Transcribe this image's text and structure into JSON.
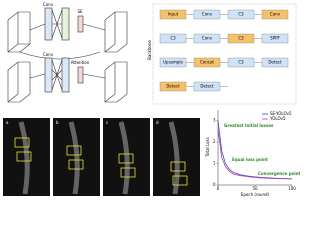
{
  "top_diagram": {
    "labels": [
      "Conv",
      "SE",
      "Conv",
      "Attention"
    ]
  },
  "flowchart": {
    "boxes": [
      "Input",
      "Conv",
      "C3",
      "Conv",
      "C3",
      "Conv",
      "C3",
      "SPPF",
      "Upsample",
      "Concat",
      "C3",
      "Detect",
      "Detect",
      "Detect"
    ],
    "title": "Backbone"
  },
  "panels": [
    "a",
    "b",
    "c",
    "d"
  ],
  "chart_data": {
    "type": "line",
    "x_label": "Epoch (round)",
    "y_label": "Total Loss",
    "x": [
      0,
      5,
      10,
      15,
      20,
      30,
      40,
      50,
      60,
      70,
      80,
      90,
      100
    ],
    "series": [
      {
        "name": "SE-YOLOv5",
        "color": "#3b4cc0",
        "values": [
          3.0,
          1.6,
          1.0,
          0.75,
          0.6,
          0.48,
          0.42,
          0.38,
          0.35,
          0.33,
          0.31,
          0.3,
          0.29
        ]
      },
      {
        "name": "YOLOv5",
        "color": "#b040b0",
        "values": [
          2.6,
          1.3,
          0.85,
          0.65,
          0.52,
          0.44,
          0.39,
          0.35,
          0.33,
          0.31,
          0.3,
          0.29,
          0.28
        ]
      }
    ],
    "annotations": [
      "Greatest Initial losses",
      "Equal loss point",
      "Convergence points"
    ],
    "xlim": [
      0,
      100
    ],
    "xticks": [
      0,
      50,
      100
    ],
    "ylim": [
      0,
      3.5
    ],
    "yticks": [
      0,
      1,
      2,
      3
    ]
  }
}
